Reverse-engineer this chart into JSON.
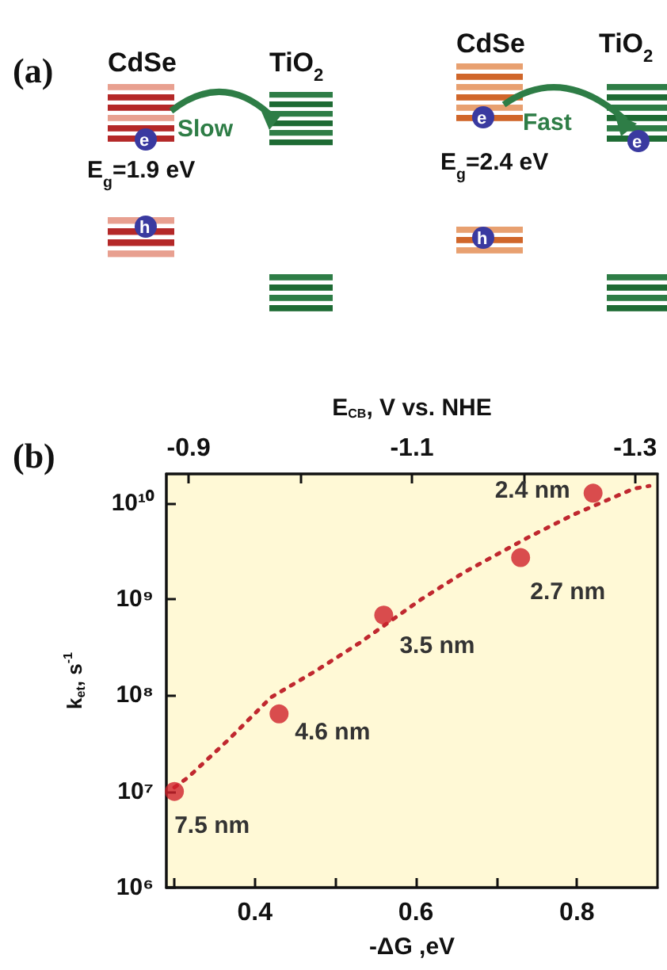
{
  "chart_data": {
    "type": "scatter",
    "xlabel": "-ΔG ,eV",
    "ylabel": "k$_{et}$, s$^{-1}$",
    "x2label": "E$_{CB}$, V vs. NHE",
    "annotations": [
      "(a)",
      "CdSe",
      "TiO$_{2}$",
      "Slow",
      "E$_{g}$=1.9 eV",
      "e",
      "h",
      "CdSe",
      "TiO$_{2}$",
      "Fast",
      "E$_{g}$=2.4 eV",
      "e",
      "h",
      "e",
      "(b)",
      {
        "text": "7.5 nm",
        "x": 0.3,
        "y": 10000000
      },
      {
        "text": "4.6 nm",
        "x": 0.43,
        "y": 64000000
      },
      {
        "text": "3.5 nm",
        "x": 0.56,
        "y": 680000000
      },
      {
        "text": "2.7 nm",
        "x": 0.73,
        "y": 2700000000
      },
      {
        "text": "2.4 nm",
        "x": 0.82,
        "y": 12600000000
      }
    ],
    "xlim": [
      0.29,
      0.9
    ],
    "xticks": [
      {
        "value": 0.3,
        "label": null
      },
      0.4,
      {
        "value": 0.5,
        "label": null
      },
      0.6,
      {
        "value": 0.7,
        "label": null
      },
      0.8
    ],
    "x2lim": [
      -0.88,
      -1.32
    ],
    "x2ticks": [
      -0.9,
      {
        "value": -1.0,
        "label": null
      },
      -1.1,
      {
        "value": -1.2,
        "label": null
      },
      -1.3
    ],
    "ylim": [
      1000000,
      20000000000
    ],
    "yticks": [
      {
        "value": 1000000,
        "label": "10⁶"
      },
      {
        "value": 10000000,
        "label": "10⁷"
      },
      {
        "value": 100000000,
        "label": "10⁸"
      },
      {
        "value": 1000000000,
        "label": "10⁹"
      },
      {
        "value": 10000000000,
        "label": "10¹⁰"
      }
    ],
    "log": "y",
    "grid": false,
    "series": [
      {
        "color": "#d0202a",
        "marker": "circle",
        "x": [
          0.3,
          0.43,
          0.56,
          0.73,
          0.82
        ],
        "values": [
          10000000,
          64000000,
          680000000,
          2700000000,
          12600000000
        ]
      },
      {
        "type": "line",
        "color": "#c0282f",
        "marker": "none",
        "line_style": "dotted",
        "x": [
          0.3,
          0.317,
          0.368,
          0.42,
          0.476,
          0.53,
          0.607,
          0.66,
          0.74,
          0.795,
          0.87,
          0.89
        ],
        "values": [
          11000000,
          14000000,
          35000000,
          95000000,
          180000000,
          350000000,
          1000000000,
          1900000000,
          4400000000,
          7500000000,
          14000000000,
          15000000000
        ]
      }
    ]
  }
}
